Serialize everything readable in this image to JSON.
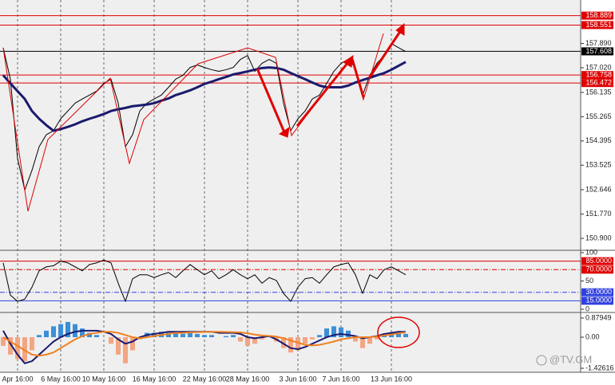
{
  "chart_data": [
    {
      "type": "line",
      "ylim": [
        150.53,
        159.45
      ],
      "yticks": [
        {
          "value": 157.89,
          "label": "157.890"
        },
        {
          "value": 157.02,
          "label": "157.020"
        },
        156.135,
        155.265,
        154.395,
        153.525,
        152.646,
        {
          "value": 151.77,
          "label": "151.770"
        },
        {
          "value": 150.9,
          "label": "150.900"
        }
      ],
      "hlines": [
        {
          "value": 158.889,
          "color": "#e00000"
        },
        {
          "value": 158.551,
          "color": "#e00000"
        },
        {
          "value": 157.608,
          "color": "#000000"
        },
        {
          "value": 156.758,
          "color": "#e00000"
        },
        {
          "value": 156.472,
          "color": "#e00000"
        }
      ],
      "series": [
        {
          "color": "#000000",
          "width": 1,
          "values": [
            157.74,
            156.61,
            153.76,
            152.63,
            153.34,
            154.19,
            154.62,
            154.76,
            155.19,
            155.47,
            155.75,
            155.9,
            156.04,
            156.18,
            156.46,
            156.61,
            155.75,
            154.19,
            154.62,
            155.47,
            155.75,
            155.9,
            156.04,
            156.32,
            156.61,
            156.75,
            157.03,
            157.12,
            157.03,
            156.95,
            156.89,
            156.95,
            157.03,
            157.32,
            157.46,
            156.89,
            157.18,
            157.32,
            157.18,
            155.75,
            154.76,
            155.19,
            155.47,
            155.9,
            156.04,
            156.46,
            156.89,
            157.18,
            157.32,
            157.03,
            156.04,
            156.75,
            157.18,
            157.46,
            157.89,
            157.74,
            157.6
          ]
        },
        {
          "color": "#1a1a6e",
          "width": 3,
          "values": [
            156.75,
            156.46,
            156.18,
            155.9,
            155.47,
            155.19,
            154.96,
            154.76,
            154.82,
            154.9,
            154.99,
            155.1,
            155.19,
            155.27,
            155.36,
            155.47,
            155.53,
            155.58,
            155.64,
            155.67,
            155.7,
            155.75,
            155.84,
            155.92,
            156.04,
            156.12,
            156.21,
            156.32,
            156.44,
            156.52,
            156.61,
            156.69,
            156.78,
            156.83,
            156.89,
            156.95,
            157.01,
            157.03,
            157.01,
            156.95,
            156.83,
            156.72,
            156.61,
            156.49,
            156.38,
            156.32,
            156.32,
            156.32,
            156.38,
            156.49,
            156.58,
            156.66,
            156.75,
            156.83,
            156.95,
            157.09,
            157.23
          ]
        }
      ]
    },
    {
      "type": "line",
      "ylim": [
        0,
        100
      ],
      "yticks": [
        100,
        {
          "value": 85,
          "label": "85.0000",
          "color": "#e00000",
          "dash": false
        },
        {
          "value": 70,
          "label": "70.0000",
          "color": "#e00000",
          "dash": true
        },
        50,
        {
          "value": 30,
          "label": "30.0000",
          "color": "#3040e0",
          "dash": true
        },
        {
          "value": 15,
          "label": "15.0000",
          "color": "#3040e0",
          "dash": false
        },
        0
      ],
      "series": [
        {
          "color": "#000000",
          "width": 1,
          "values": [
            82,
            25,
            14,
            18,
            39,
            68,
            75,
            77,
            85,
            82,
            75,
            68,
            79,
            82,
            87,
            82,
            46,
            14,
            54,
            61,
            61,
            56,
            61,
            65,
            56,
            68,
            79,
            70,
            61,
            68,
            54,
            61,
            70,
            61,
            54,
            61,
            46,
            56,
            51,
            28,
            14,
            39,
            54,
            56,
            46,
            61,
            75,
            79,
            82,
            61,
            28,
            61,
            54,
            70,
            75,
            68,
            61
          ]
        }
      ]
    },
    {
      "type": "bar",
      "ylim": [
        -1.536,
        1.026
      ],
      "yticks": [
        0.87949,
        {
          "value": 0,
          "label": "0.00"
        },
        -1.42616
      ],
      "categories": [
        null,
        null,
        "Apr 16:00",
        null,
        null,
        null,
        null,
        null,
        "6 May 16:00",
        null,
        null,
        null,
        null,
        null,
        "10 May 16:00",
        null,
        null,
        null,
        null,
        null,
        null,
        "16 May 16:00",
        null,
        null,
        null,
        null,
        null,
        null,
        "22 May 16:00",
        null,
        null,
        null,
        null,
        null,
        "28 May 16:00",
        null,
        null,
        null,
        null,
        null,
        null,
        "3 Jun 16:00",
        null,
        null,
        null,
        null,
        null,
        "7 Jun 16:00",
        null,
        null,
        null,
        null,
        null,
        null,
        "13 Jun 16:00",
        null,
        null
      ],
      "series": [
        {
          "color": "#3a8fd8",
          "negative_color": "#f4a582",
          "values": [
            -0.4,
            -0.8,
            -1.0,
            -1.1,
            -0.6,
            0.1,
            0.3,
            0.5,
            0.6,
            0.7,
            0.6,
            0.4,
            0.2,
            0.1,
            0.0,
            -0.3,
            -0.8,
            -1.2,
            -0.6,
            -0.1,
            0.2,
            0.2,
            0.25,
            0.2,
            0.2,
            0.15,
            0.2,
            0.15,
            0.1,
            0.1,
            0.0,
            0.05,
            0.1,
            -0.2,
            -0.4,
            -0.3,
            -0.1,
            0.05,
            -0.2,
            -0.5,
            -0.7,
            -0.6,
            -0.3,
            -0.1,
            0.1,
            0.4,
            0.5,
            0.45,
            0.3,
            -0.2,
            -0.5,
            -0.3,
            -0.1,
            0.1,
            0.2,
            0.2,
            0.15
          ]
        },
        {
          "type": "line",
          "color": "#1a1a6e",
          "width": 2,
          "values": [
            0.3,
            -0.3,
            -0.8,
            -1.2,
            -1.1,
            -0.8,
            -0.5,
            -0.2,
            0.0,
            0.15,
            0.25,
            0.3,
            0.3,
            0.3,
            0.25,
            0.15,
            -0.1,
            -0.3,
            -0.2,
            0.0,
            0.1,
            0.15,
            0.2,
            0.25,
            0.25,
            0.25,
            0.25,
            0.25,
            0.25,
            0.25,
            0.2,
            0.2,
            0.2,
            0.15,
            0.0,
            -0.05,
            0.0,
            0.05,
            -0.1,
            -0.3,
            -0.5,
            -0.55,
            -0.45,
            -0.3,
            -0.15,
            0.0,
            0.1,
            0.15,
            0.1,
            0.05,
            -0.05,
            0.0,
            0.05,
            0.15,
            0.2,
            0.25,
            0.25
          ]
        },
        {
          "type": "line",
          "color": "#f08020",
          "width": 2,
          "values": [
            0.0,
            -0.2,
            -0.4,
            -0.6,
            -0.8,
            -0.85,
            -0.8,
            -0.7,
            -0.5,
            -0.3,
            -0.1,
            0.05,
            0.15,
            0.2,
            0.25,
            0.25,
            0.2,
            0.1,
            0.0,
            -0.05,
            0.0,
            0.05,
            0.1,
            0.15,
            0.2,
            0.2,
            0.22,
            0.23,
            0.24,
            0.25,
            0.25,
            0.24,
            0.23,
            0.22,
            0.18,
            0.12,
            0.08,
            0.06,
            0.03,
            -0.05,
            -0.15,
            -0.25,
            -0.35,
            -0.38,
            -0.35,
            -0.28,
            -0.2,
            -0.1,
            -0.05,
            0.0,
            0.0,
            0.0,
            0.03,
            0.08,
            0.12,
            0.18,
            0.22
          ]
        }
      ]
    }
  ],
  "watermark": "@TV.GM"
}
